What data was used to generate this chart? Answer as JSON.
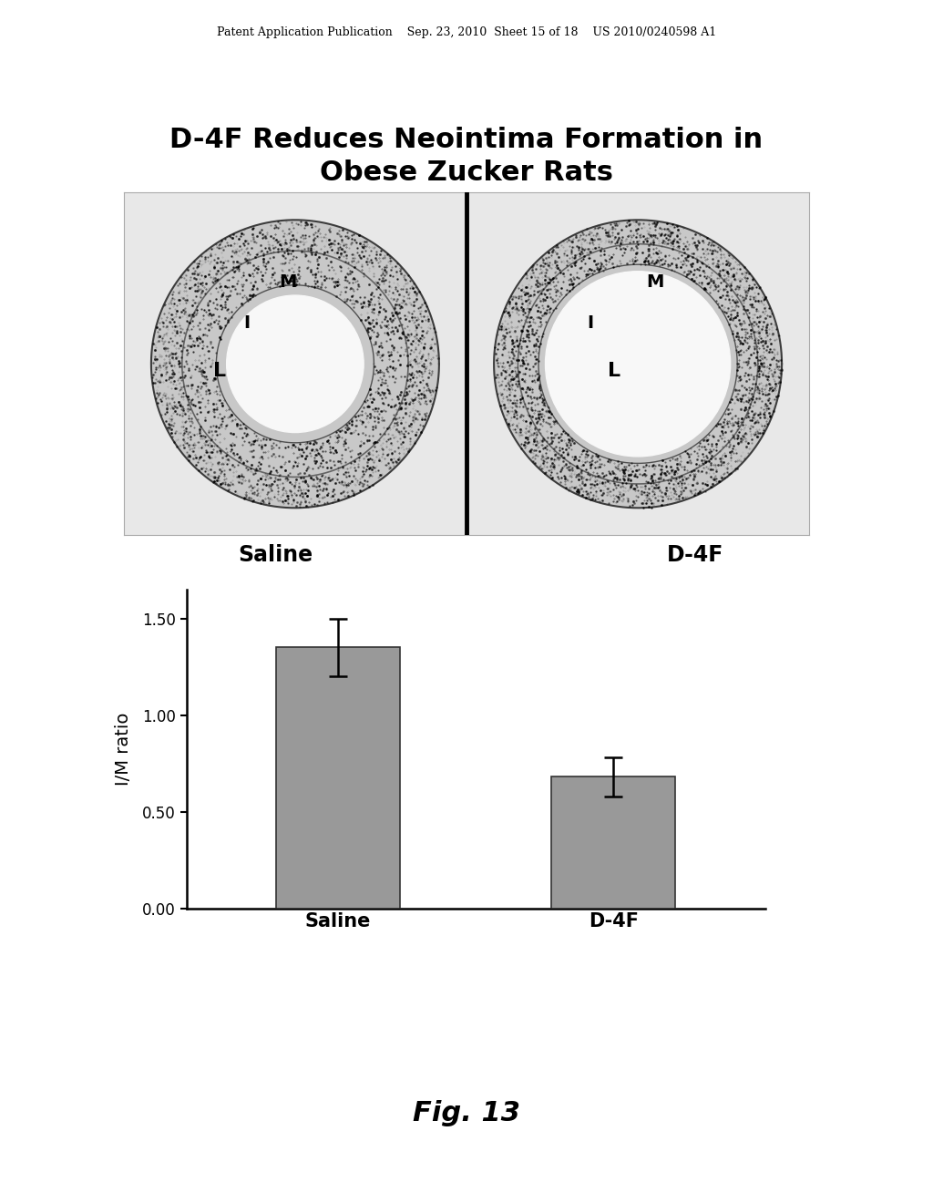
{
  "title_line1": "D-4F Reduces Neointima Formation in",
  "title_line2": "Obese Zucker Rats",
  "title_fontsize": 22,
  "title_fontweight": "bold",
  "header_text": "Patent Application Publication    Sep. 23, 2010  Sheet 15 of 18    US 2010/0240598 A1",
  "header_fontsize": 9,
  "image_sublabel_left": "Saline",
  "image_sublabel_right": "D-4F",
  "image_sublabel_fontsize": 17,
  "bar_categories": [
    "Saline",
    "D-4F"
  ],
  "bar_values": [
    1.35,
    0.68
  ],
  "bar_errors": [
    0.15,
    0.1
  ],
  "bar_color": "#999999",
  "bar_edgecolor": "#333333",
  "bar_width": 0.45,
  "ylabel": "I/M ratio",
  "ylabel_fontsize": 14,
  "ylim": [
    0.0,
    1.65
  ],
  "yticks": [
    0.0,
    0.5,
    1.0,
    1.5
  ],
  "ytick_labels": [
    "0.00",
    "0.50",
    "1.00",
    "1.50"
  ],
  "xlabel_fontsize": 15,
  "fig_label": "Fig. 13",
  "fig_label_fontsize": 22,
  "fig_label_fontstyle": "italic",
  "fig_label_fontweight": "bold",
  "background_color": "#ffffff"
}
